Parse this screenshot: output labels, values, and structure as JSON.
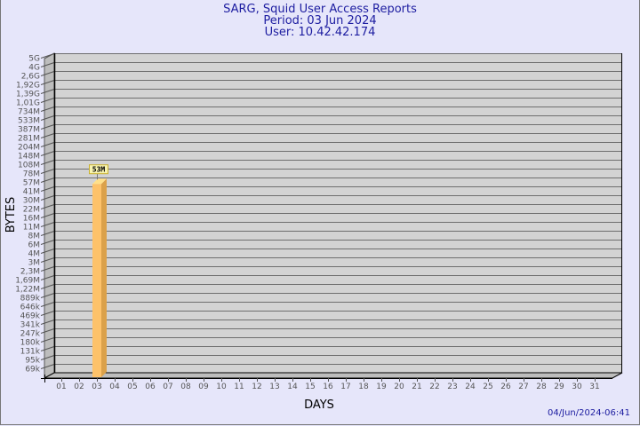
{
  "header": {
    "title": "SARG, Squid User Access Reports",
    "period": "Period: 03 Jun 2024",
    "user": "User: 10.42.42.174"
  },
  "footer": {
    "timestamp": "04/Jun/2024-06:41"
  },
  "colors": {
    "background": "#e6e6fa",
    "plot": "#d3d3d3",
    "bar_front": "#fdc26a",
    "bar_side": "#dba14a",
    "title": "#1c1ca0"
  },
  "chart_data": {
    "type": "bar",
    "xlabel": "DAYS",
    "ylabel": "BYTES",
    "scale": "log",
    "grid": true,
    "style": "3d",
    "y_tick_labels": [
      "5G",
      "4G",
      "2,6G",
      "1,92G",
      "1,39G",
      "1,01G",
      "734M",
      "533M",
      "387M",
      "281M",
      "204M",
      "148M",
      "108M",
      "78M",
      "57M",
      "41M",
      "30M",
      "22M",
      "16M",
      "11M",
      "8M",
      "6M",
      "4M",
      "3M",
      "2,3M",
      "1,69M",
      "1,22M",
      "889k",
      "646k",
      "469k",
      "341k",
      "247k",
      "180k",
      "131k",
      "95k",
      "69k"
    ],
    "categories": [
      "01",
      "02",
      "03",
      "04",
      "05",
      "06",
      "07",
      "08",
      "09",
      "10",
      "11",
      "12",
      "13",
      "14",
      "15",
      "16",
      "17",
      "18",
      "19",
      "20",
      "21",
      "22",
      "23",
      "24",
      "25",
      "26",
      "27",
      "28",
      "29",
      "30",
      "31"
    ],
    "bars": [
      {
        "category": "03",
        "value": 53000000,
        "label": "53M"
      }
    ]
  }
}
